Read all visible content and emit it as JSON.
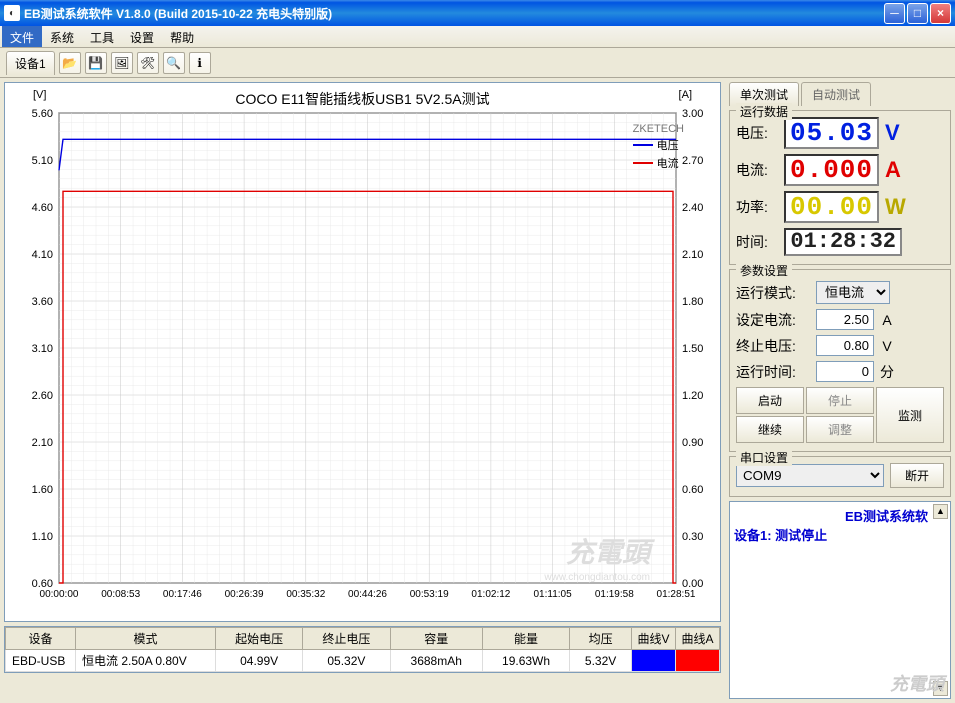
{
  "window": {
    "title": "EB测试系统软件  V1.8.0 (Build 2015-10-22 充电头特别版)",
    "icon_glyph": "◐"
  },
  "menu": {
    "items": [
      "文件",
      "系统",
      "工具",
      "设置",
      "帮助"
    ],
    "active_index": 0
  },
  "toolbar": {
    "device_tab": "设备1",
    "icons": [
      "open-icon",
      "save-icon",
      "image-icon",
      "config-icon",
      "search-icon",
      "info-icon"
    ],
    "glyphs": [
      "📂",
      "💾",
      "🖼",
      "🛠",
      "🔍",
      "ℹ"
    ]
  },
  "chart": {
    "title": "COCO E11智能插线板USB1 5V2.5A测试",
    "y_left_unit": "[V]",
    "y_right_unit": "[A]",
    "brand": "ZKETECH",
    "legend": [
      {
        "label": "电压",
        "color": "#0000e0"
      },
      {
        "label": "电流",
        "color": "#e00000"
      }
    ],
    "y_left": {
      "min": 0.6,
      "max": 5.6,
      "step": 0.5,
      "ticks": [
        "5.60",
        "5.10",
        "4.60",
        "4.10",
        "3.60",
        "3.10",
        "2.60",
        "2.10",
        "1.60",
        "1.10",
        "0.60"
      ]
    },
    "y_right": {
      "min": 0.0,
      "max": 3.0,
      "step": 0.3,
      "ticks": [
        "3.00",
        "2.70",
        "2.40",
        "2.10",
        "1.80",
        "1.50",
        "1.20",
        "0.90",
        "0.60",
        "0.30",
        "0.00"
      ]
    },
    "x_ticks": [
      "00:00:00",
      "00:08:53",
      "00:17:46",
      "00:26:39",
      "00:35:32",
      "00:44:26",
      "00:53:19",
      "01:02:12",
      "01:11:05",
      "01:19:58",
      "01:28:51"
    ],
    "series_voltage": {
      "color": "#0000e0",
      "value_V": 5.32,
      "start_V": 4.99
    },
    "series_current": {
      "color": "#e00000",
      "value_A": 2.5
    },
    "watermark": "充電頭",
    "watermark_url": "www.chongdiantou.com",
    "bg": "#ffffff",
    "grid": "#c8c8c8",
    "grid_minor": "#e6e6e6",
    "border": "#000000"
  },
  "table": {
    "headers": [
      "设备",
      "模式",
      "起始电压",
      "终止电压",
      "容量",
      "能量",
      "均压",
      "曲线V",
      "曲线A"
    ],
    "row": {
      "device": "EBD-USB",
      "mode": "恒电流 2.50A 0.80V",
      "v_start": "04.99V",
      "v_end": "05.32V",
      "capacity": "3688mAh",
      "energy": "19.63Wh",
      "avg_v": "5.32V"
    }
  },
  "tabs": {
    "items": [
      "单次测试",
      "自动测试"
    ],
    "active_index": 0
  },
  "run_data": {
    "title": "运行数据",
    "voltage_label": "电压:",
    "voltage": "05.03",
    "voltage_unit": "V",
    "current_label": "电流:",
    "current": "0.000",
    "current_unit": "A",
    "power_label": "功率:",
    "power": "00.00",
    "power_unit": "W",
    "time_label": "时间:",
    "time": "01:28:32"
  },
  "params": {
    "title": "参数设置",
    "mode_label": "运行模式:",
    "mode_value": "恒电流",
    "set_current_label": "设定电流:",
    "set_current": "2.50",
    "set_current_unit": "A",
    "cutoff_v_label": "终止电压:",
    "cutoff_v": "0.80",
    "cutoff_v_unit": "V",
    "run_time_label": "运行时间:",
    "run_time": "0",
    "run_time_unit": "分",
    "buttons": {
      "start": "启动",
      "stop": "停止",
      "monitor": "监测",
      "continue": "继续",
      "adjust": "调整"
    }
  },
  "serial": {
    "title": "串口设置",
    "port": "COM9",
    "disconnect": "断开"
  },
  "log": {
    "title": "EB测试系统软",
    "line": "设备1: 测试停止",
    "wm": "充電頭",
    "wm2": "www.chongdiantou.com"
  }
}
